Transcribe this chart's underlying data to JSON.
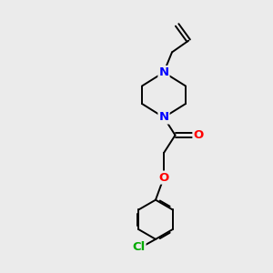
{
  "background_color": "#ebebeb",
  "bond_color": "#000000",
  "N_color": "#0000ff",
  "O_color": "#ff0000",
  "Cl_color": "#00aa00",
  "font_size_atom": 9.5,
  "figsize": [
    3.0,
    3.0
  ],
  "dpi": 100,
  "bond_lw": 1.4,
  "xlim": [
    0,
    10
  ],
  "ylim": [
    0,
    10
  ]
}
